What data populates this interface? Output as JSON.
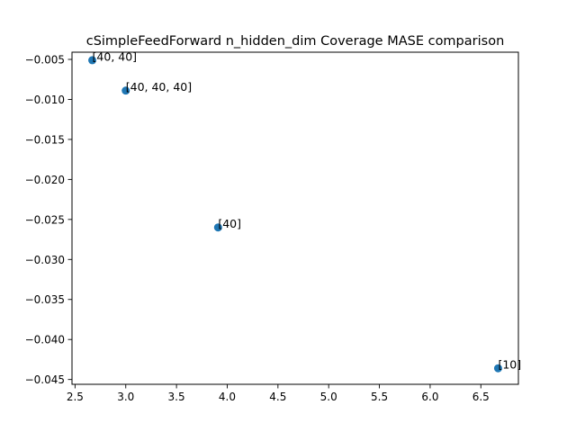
{
  "chart_data": {
    "type": "scatter",
    "title": "cSimpleFeedForward n_hidden_dim Coverage MASE comparison",
    "xlabel": "",
    "ylabel": "",
    "xlim": [
      2.47,
      6.87
    ],
    "ylim": [
      -0.0456,
      -0.0041
    ],
    "xticks": [
      2.5,
      3.0,
      3.5,
      4.0,
      4.5,
      5.0,
      5.5,
      6.0,
      6.5
    ],
    "xtick_labels": [
      "2.5",
      "3.0",
      "3.5",
      "4.0",
      "4.5",
      "5.0",
      "5.5",
      "6.0",
      "6.5"
    ],
    "yticks": [
      -0.005,
      -0.01,
      -0.015,
      -0.02,
      -0.025,
      -0.03,
      -0.035,
      -0.04,
      -0.045
    ],
    "ytick_labels": [
      "−0.005",
      "−0.010",
      "−0.015",
      "−0.020",
      "−0.025",
      "−0.030",
      "−0.035",
      "−0.040",
      "−0.045"
    ],
    "grid": false,
    "marker_color": "#1f77b4",
    "points": [
      {
        "x": 2.67,
        "y": -0.0051,
        "label": "[40, 40]"
      },
      {
        "x": 3.0,
        "y": -0.0089,
        "label": "[40, 40, 40]"
      },
      {
        "x": 3.91,
        "y": -0.026,
        "label": "[40]"
      },
      {
        "x": 6.67,
        "y": -0.0436,
        "label": "[10]"
      }
    ]
  }
}
